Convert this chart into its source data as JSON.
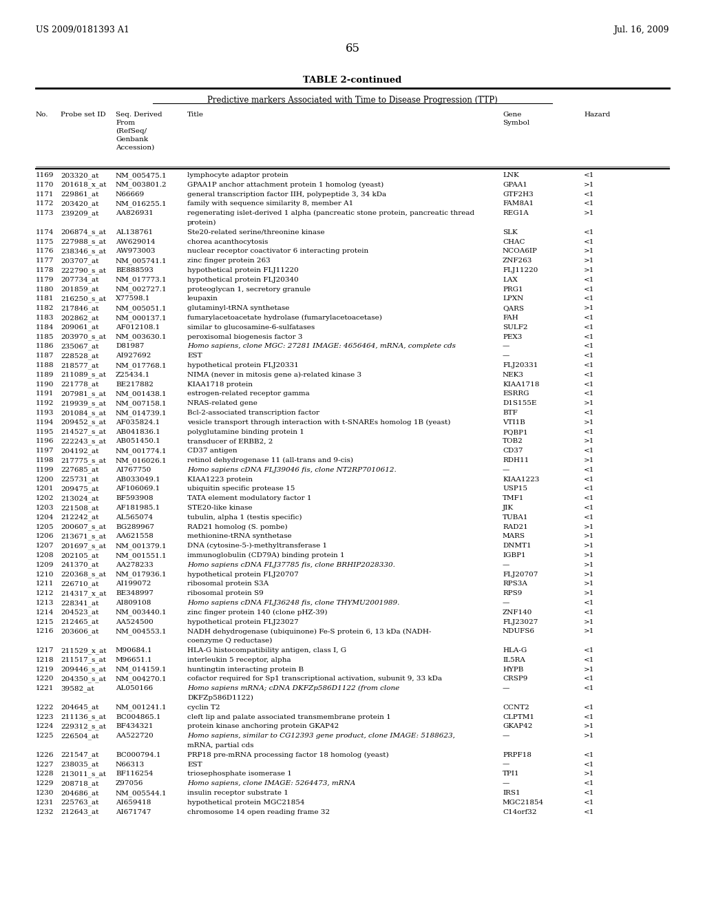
{
  "header_left": "US 2009/0181393 A1",
  "header_right": "Jul. 16, 2009",
  "page_number": "65",
  "table_title": "TABLE 2-continued",
  "subtitle": "Predictive markers Associated with Time to Disease Progression (TTP)",
  "rows": [
    [
      "1169",
      "203320_at",
      "NM_005475.1",
      "lymphocyte adaptor protein",
      "LNK",
      "<1",
      false
    ],
    [
      "1170",
      "201618_x_at",
      "NM_003801.2",
      "GPAA1P anchor attachment protein 1 homolog (yeast)",
      "GPAA1",
      ">1",
      false
    ],
    [
      "1171",
      "229861_at",
      "N66669",
      "general transcription factor IIH, polypeptide 3, 34 kDa",
      "GTF2H3",
      "<1",
      false
    ],
    [
      "1172",
      "203420_at",
      "NM_016255.1",
      "family with sequence similarity 8, member A1",
      "FAM8A1",
      "<1",
      false
    ],
    [
      "1173",
      "239209_at",
      "AA826931",
      "regenerating islet-derived 1 alpha (pancreatic stone protein, pancreatic thread|protein)",
      "REG1A",
      ">1",
      false
    ],
    [
      "1174",
      "206874_s_at",
      "AL138761",
      "Ste20-related serine/threonine kinase",
      "SLK",
      "<1",
      false
    ],
    [
      "1175",
      "227988_s_at",
      "AW629014",
      "chorea acanthocytosis",
      "CHAC",
      "<1",
      false
    ],
    [
      "1176",
      "238346_s_at",
      "AW973003",
      "nuclear receptor coactivator 6 interacting protein",
      "NCOA6IP",
      ">1",
      false
    ],
    [
      "1177",
      "203707_at",
      "NM_005741.1",
      "zinc finger protein 263",
      "ZNF263",
      ">1",
      false
    ],
    [
      "1178",
      "222790_s_at",
      "BE888593",
      "hypothetical protein FLJ11220",
      "FLJ11220",
      ">1",
      false
    ],
    [
      "1179",
      "207734_at",
      "NM_017773.1",
      "hypothetical protein FLJ20340",
      "LAX",
      "<1",
      false
    ],
    [
      "1180",
      "201859_at",
      "NM_002727.1",
      "proteoglycan 1, secretory granule",
      "PRG1",
      "<1",
      false
    ],
    [
      "1181",
      "216250_s_at",
      "X77598.1",
      "leupaxin",
      "LPXN",
      "<1",
      false
    ],
    [
      "1182",
      "217846_at",
      "NM_005051.1",
      "glutaminyl-tRNA synthetase",
      "QARS",
      ">1",
      false
    ],
    [
      "1183",
      "202862_at",
      "NM_000137.1",
      "fumarylacetoacetate hydrolase (fumarylacetoacetase)",
      "FAH",
      "<1",
      false
    ],
    [
      "1184",
      "209061_at",
      "AF012108.1",
      "similar to glucosamine-6-sulfatases",
      "SULF2",
      "<1",
      false
    ],
    [
      "1185",
      "203970_s_at",
      "NM_003630.1",
      "peroxisomal biogenesis factor 3",
      "PEX3",
      "<1",
      false
    ],
    [
      "1186",
      "235067_at",
      "D81987",
      "Homo sapiens, clone MGC: 27281 IMAGE: 4656464, mRNA, complete cds",
      "—",
      "<1",
      true
    ],
    [
      "1187",
      "228528_at",
      "AI927692",
      "EST",
      "—",
      "<1",
      false
    ],
    [
      "1188",
      "218577_at",
      "NM_017768.1",
      "hypothetical protein FLJ20331",
      "FLJ20331",
      "<1",
      false
    ],
    [
      "1189",
      "211089_s_at",
      "Z25434.1",
      "NIMA (never in mitosis gene a)-related kinase 3",
      "NEK3",
      "<1",
      false
    ],
    [
      "1190",
      "221778_at",
      "BE217882",
      "KIAA1718 protein",
      "KIAA1718",
      "<1",
      false
    ],
    [
      "1191",
      "207981_s_at",
      "NM_001438.1",
      "estrogen-related receptor gamma",
      "ESRRG",
      "<1",
      false
    ],
    [
      "1192",
      "219939_s_at",
      "NM_007158.1",
      "NRAS-related gene",
      "D1S155E",
      ">1",
      false
    ],
    [
      "1193",
      "201084_s_at",
      "NM_014739.1",
      "Bcl-2-associated transcription factor",
      "BTF",
      "<1",
      false
    ],
    [
      "1194",
      "209452_s_at",
      "AF035824.1",
      "vesicle transport through interaction with t-SNAREs homolog 1B (yeast)",
      "VTI1B",
      ">1",
      false
    ],
    [
      "1195",
      "214527_s_at",
      "AB041836.1",
      "polyglutamine binding protein 1",
      "PQBP1",
      "<1",
      false
    ],
    [
      "1196",
      "222243_s_at",
      "AB051450.1",
      "transducer of ERBB2, 2",
      "TOB2",
      ">1",
      false
    ],
    [
      "1197",
      "204192_at",
      "NM_001774.1",
      "CD37 antigen",
      "CD37",
      "<1",
      false
    ],
    [
      "1198",
      "217775_s_at",
      "NM_016026.1",
      "retinol dehydrogenase 11 (all-trans and 9-cis)",
      "RDH11",
      ">1",
      false
    ],
    [
      "1199",
      "227685_at",
      "AI767750",
      "Homo sapiens cDNA FLJ39046 fis, clone NT2RP7010612.",
      "—",
      "<1",
      true
    ],
    [
      "1200",
      "225731_at",
      "AB033049.1",
      "KIAA1223 protein",
      "KIAA1223",
      "<1",
      false
    ],
    [
      "1201",
      "209475_at",
      "AF106069.1",
      "ubiquitin specific protease 15",
      "USP15",
      "<1",
      false
    ],
    [
      "1202",
      "213024_at",
      "BF593908",
      "TATA element modulatory factor 1",
      "TMF1",
      "<1",
      false
    ],
    [
      "1203",
      "221508_at",
      "AF181985.1",
      "STE20-like kinase",
      "JIK",
      "<1",
      false
    ],
    [
      "1204",
      "212242_at",
      "AL565074",
      "tubulin, alpha 1 (testis specific)",
      "TUBA1",
      "<1",
      false
    ],
    [
      "1205",
      "200607_s_at",
      "BG289967",
      "RAD21 homolog (S. pombe)",
      "RAD21",
      ">1",
      false
    ],
    [
      "1206",
      "213671_s_at",
      "AA621558",
      "methionine-tRNA synthetase",
      "MARS",
      ">1",
      false
    ],
    [
      "1207",
      "201697_s_at",
      "NM_001379.1",
      "DNA (cytosine-5-)-methyltransferase 1",
      "DNMT1",
      ">1",
      false
    ],
    [
      "1208",
      "202105_at",
      "NM_001551.1",
      "immunoglobulin (CD79A) binding protein 1",
      "IGBP1",
      ">1",
      false
    ],
    [
      "1209",
      "241370_at",
      "AA278233",
      "Homo sapiens cDNA FLJ37785 fis, clone BRHIP2028330.",
      "—",
      ">1",
      true
    ],
    [
      "1210",
      "220368_s_at",
      "NM_017936.1",
      "hypothetical protein FLJ20707",
      "FLJ20707",
      ">1",
      false
    ],
    [
      "1211",
      "226710_at",
      "AI199072",
      "ribosomal protein S3A",
      "RPS3A",
      ">1",
      false
    ],
    [
      "1212",
      "214317_x_at",
      "BE348997",
      "ribosomal protein S9",
      "RPS9",
      ">1",
      false
    ],
    [
      "1213",
      "228341_at",
      "AI809108",
      "Homo sapiens cDNA FLJ36248 fis, clone THYMU2001989.",
      "—",
      "<1",
      true
    ],
    [
      "1214",
      "204523_at",
      "NM_003440.1",
      "zinc finger protein 140 (clone pHZ-39)",
      "ZNF140",
      "<1",
      false
    ],
    [
      "1215",
      "212465_at",
      "AA524500",
      "hypothetical protein FLJ23027",
      "FLJ23027",
      ">1",
      false
    ],
    [
      "1216",
      "203606_at",
      "NM_004553.1",
      "NADH dehydrogenase (ubiquinone) Fe-S protein 6, 13 kDa (NADH-|coenzyme Q reductase)",
      "NDUFS6",
      ">1",
      false
    ],
    [
      "1217",
      "211529_x_at",
      "M90684.1",
      "HLA-G histocompatibility antigen, class I, G",
      "HLA-G",
      "<1",
      false
    ],
    [
      "1218",
      "211517_s_at",
      "M96651.1",
      "interleukin 5 receptor, alpha",
      "IL5RA",
      "<1",
      false
    ],
    [
      "1219",
      "209446_s_at",
      "NM_014159.1",
      "huntingtin interacting protein B",
      "HYPB",
      ">1",
      false
    ],
    [
      "1220",
      "204350_s_at",
      "NM_004270.1",
      "cofactor required for Sp1 transcriptional activation, subunit 9, 33 kDa",
      "CRSP9",
      "<1",
      false
    ],
    [
      "1221",
      "39582_at",
      "AL050166",
      "Homo sapiens mRNA; cDNA DKFZp586D1122 (from clone|DKFZp586D1122)",
      "—",
      "<1",
      true
    ],
    [
      "1222",
      "204645_at",
      "NM_001241.1",
      "cyclin T2",
      "CCNT2",
      "<1",
      false
    ],
    [
      "1223",
      "211136_s_at",
      "BC004865.1",
      "cleft lip and palate associated transmembrane protein 1",
      "CLPTM1",
      "<1",
      false
    ],
    [
      "1224",
      "229312_s_at",
      "BF434321",
      "protein kinase anchoring protein GKAP42",
      "GKAP42",
      ">1",
      false
    ],
    [
      "1225",
      "226504_at",
      "AA522720",
      "Homo sapiens, similar to CG12393 gene product, clone IMAGE: 5188623,|mRNA, partial cds",
      "—",
      ">1",
      true
    ],
    [
      "1226",
      "221547_at",
      "BC000794.1",
      "PRP18 pre-mRNA processing factor 18 homolog (yeast)",
      "PRPF18",
      "<1",
      false
    ],
    [
      "1227",
      "238035_at",
      "N66313",
      "EST",
      "—",
      "<1",
      false
    ],
    [
      "1228",
      "213011_s_at",
      "BF116254",
      "triosephosphate isomerase 1",
      "TPI1",
      ">1",
      false
    ],
    [
      "1229",
      "208718_at",
      "Z97056",
      "Homo sapiens, clone IMAGE: 5264473, mRNA",
      "—",
      "<1",
      true
    ],
    [
      "1230",
      "204686_at",
      "NM_005544.1",
      "insulin receptor substrate 1",
      "IRS1",
      "<1",
      false
    ],
    [
      "1231",
      "225763_at",
      "AI659418",
      "hypothetical protein MGC21854",
      "MGC21854",
      "<1",
      false
    ],
    [
      "1232",
      "212643_at",
      "AI671747",
      "chromosome 14 open reading frame 32",
      "C14orf32",
      "<1",
      false
    ]
  ]
}
